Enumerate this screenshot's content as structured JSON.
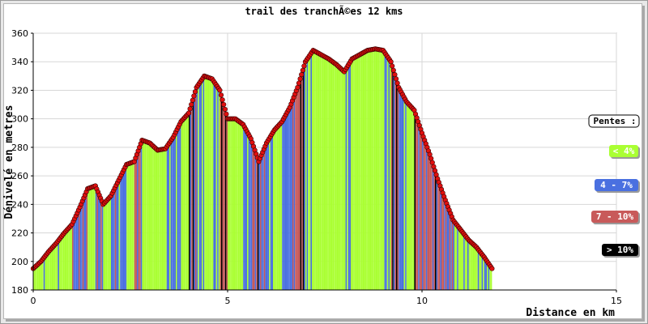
{
  "chart_data": {
    "type": "area",
    "title": "trail des tranchÃ©es 12 kms",
    "xlabel": "Distance en km",
    "ylabel": "Dénivelé en metres",
    "xlim": [
      0,
      15
    ],
    "ylim": [
      180,
      360
    ],
    "x_ticks": [
      "0",
      "5",
      "10",
      "15"
    ],
    "y_ticks": [
      "180",
      "200",
      "220",
      "240",
      "260",
      "280",
      "300",
      "320",
      "340",
      "360"
    ],
    "grid": true,
    "legend_position": "right",
    "legend_title": "Pentes :",
    "legend": [
      {
        "label": "< 4%",
        "color": "#aaff33"
      },
      {
        "label": "4 - 7%",
        "color": "#4a70e0"
      },
      {
        "label": "7 - 10%",
        "color": "#c85a5a"
      },
      {
        "label": "> 10%",
        "color": "#000000"
      }
    ],
    "series": [
      {
        "x": [
          0,
          0.2,
          0.4,
          0.6,
          0.8,
          1.0,
          1.2,
          1.4,
          1.6,
          1.8,
          2.0,
          2.2,
          2.4,
          2.6,
          2.8,
          3.0,
          3.2,
          3.4,
          3.6,
          3.8,
          4.0,
          4.2,
          4.4,
          4.6,
          4.8,
          5.0,
          5.2,
          5.4,
          5.6,
          5.8,
          6.0,
          6.2,
          6.4,
          6.6,
          6.8,
          7.0,
          7.2,
          7.4,
          7.6,
          7.8,
          8.0,
          8.2,
          8.4,
          8.6,
          8.8,
          9.0,
          9.2,
          9.4,
          9.6,
          9.8,
          10.0,
          10.2,
          10.4,
          10.6,
          10.8,
          11.0,
          11.2,
          11.4,
          11.6,
          11.8
        ],
        "y": [
          195,
          200,
          207,
          213,
          220,
          226,
          238,
          251,
          253,
          240,
          246,
          257,
          268,
          270,
          285,
          283,
          278,
          279,
          287,
          298,
          304,
          322,
          330,
          328,
          320,
          300,
          300,
          296,
          286,
          270,
          283,
          292,
          298,
          308,
          322,
          340,
          348,
          345,
          342,
          338,
          333,
          342,
          345,
          348,
          349,
          348,
          340,
          322,
          312,
          306,
          290,
          275,
          258,
          243,
          229,
          222,
          215,
          210,
          203,
          195
        ]
      }
    ]
  }
}
